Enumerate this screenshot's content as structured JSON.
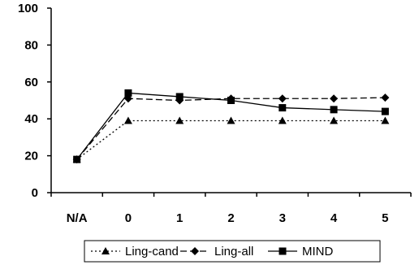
{
  "chart_data": {
    "type": "line",
    "title": "",
    "xlabel": "",
    "ylabel": "",
    "categories": [
      "N/A",
      "0",
      "1",
      "2",
      "3",
      "4",
      "5"
    ],
    "ylim": [
      0,
      100
    ],
    "yticks": [
      0,
      20,
      40,
      60,
      80,
      100
    ],
    "grid": false,
    "legend_position": "bottom",
    "series": [
      {
        "name": "Ling-cand",
        "values": [
          18,
          39,
          39,
          39,
          39,
          39,
          39
        ],
        "line_style": "dotted",
        "marker": "triangle",
        "color": "#000000"
      },
      {
        "name": "Ling-all",
        "values": [
          18,
          51,
          50,
          51,
          51,
          51,
          51.5
        ],
        "line_style": "dashed",
        "marker": "diamond",
        "color": "#000000"
      },
      {
        "name": "MIND",
        "values": [
          18,
          54,
          52,
          50,
          46,
          45,
          44
        ],
        "line_style": "solid",
        "marker": "square",
        "color": "#000000"
      }
    ]
  }
}
